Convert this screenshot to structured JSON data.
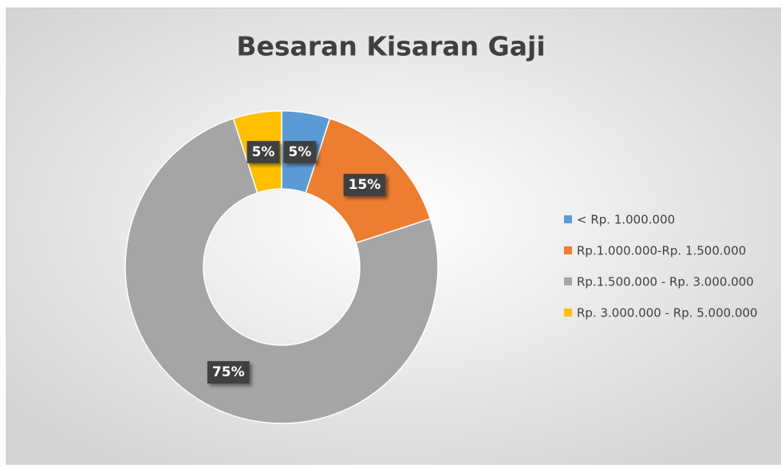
{
  "chart_data": {
    "type": "donut",
    "title": "Besaran Kisaran Gaji",
    "categories": [
      "< Rp. 1.000.000",
      "Rp.1.000.000-Rp. 1.500.000",
      "Rp.1.500.000 - Rp. 3.000.000",
      "Rp. 3.000.000 - Rp. 5.000.000"
    ],
    "values": [
      5,
      15,
      75,
      5
    ],
    "value_labels": [
      "5%",
      "15%",
      "75%",
      "5%"
    ],
    "colors": [
      "#5b9bd5",
      "#ed7d31",
      "#a5a5a5",
      "#ffc000"
    ],
    "legend": "right"
  }
}
